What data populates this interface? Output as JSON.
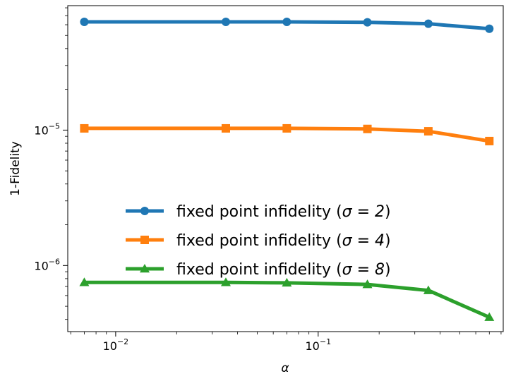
{
  "chart_data": {
    "type": "line",
    "xlabel": "α",
    "ylabel": "1-Fidelity",
    "xscale": "log",
    "yscale": "log",
    "xlim": [
      0.0058,
      0.82
    ],
    "ylim": [
      3.25e-07,
      8.3e-05
    ],
    "x_ticks": [
      {
        "value": 0.01,
        "mantissa": "10",
        "exp": "−2"
      },
      {
        "value": 0.1,
        "mantissa": "10",
        "exp": "−1"
      }
    ],
    "y_ticks": [
      {
        "value": 1e-06,
        "mantissa": "10",
        "exp": "−6"
      },
      {
        "value": 1e-05,
        "mantissa": "10",
        "exp": "−5"
      }
    ],
    "x": [
      0.007,
      0.035,
      0.07,
      0.175,
      0.35,
      0.7
    ],
    "series": [
      {
        "name": "fixed point infidelity (σ = 2)",
        "name_prefix": "fixed point infidelity (",
        "name_sigma": "σ = 2",
        "name_suffix": ")",
        "color": "#1f77b4",
        "marker": "circle",
        "values": [
          6.3e-05,
          6.3e-05,
          6.3e-05,
          6.25e-05,
          6.1e-05,
          5.6e-05
        ]
      },
      {
        "name": "fixed point infidelity (σ = 4)",
        "name_prefix": "fixed point infidelity (",
        "name_sigma": "σ = 4",
        "name_suffix": ")",
        "color": "#ff7f0e",
        "marker": "square",
        "values": [
          1.03e-05,
          1.03e-05,
          1.03e-05,
          1.02e-05,
          9.8e-06,
          8.3e-06
        ]
      },
      {
        "name": "fixed point infidelity (σ = 8)",
        "name_prefix": "fixed point infidelity (",
        "name_sigma": "σ = 8",
        "name_suffix": ")",
        "color": "#2ca02c",
        "marker": "triangle",
        "values": [
          7.5e-07,
          7.5e-07,
          7.45e-07,
          7.25e-07,
          6.55e-07,
          4.15e-07
        ]
      }
    ],
    "legend_position": "lower-center",
    "grid": false
  }
}
